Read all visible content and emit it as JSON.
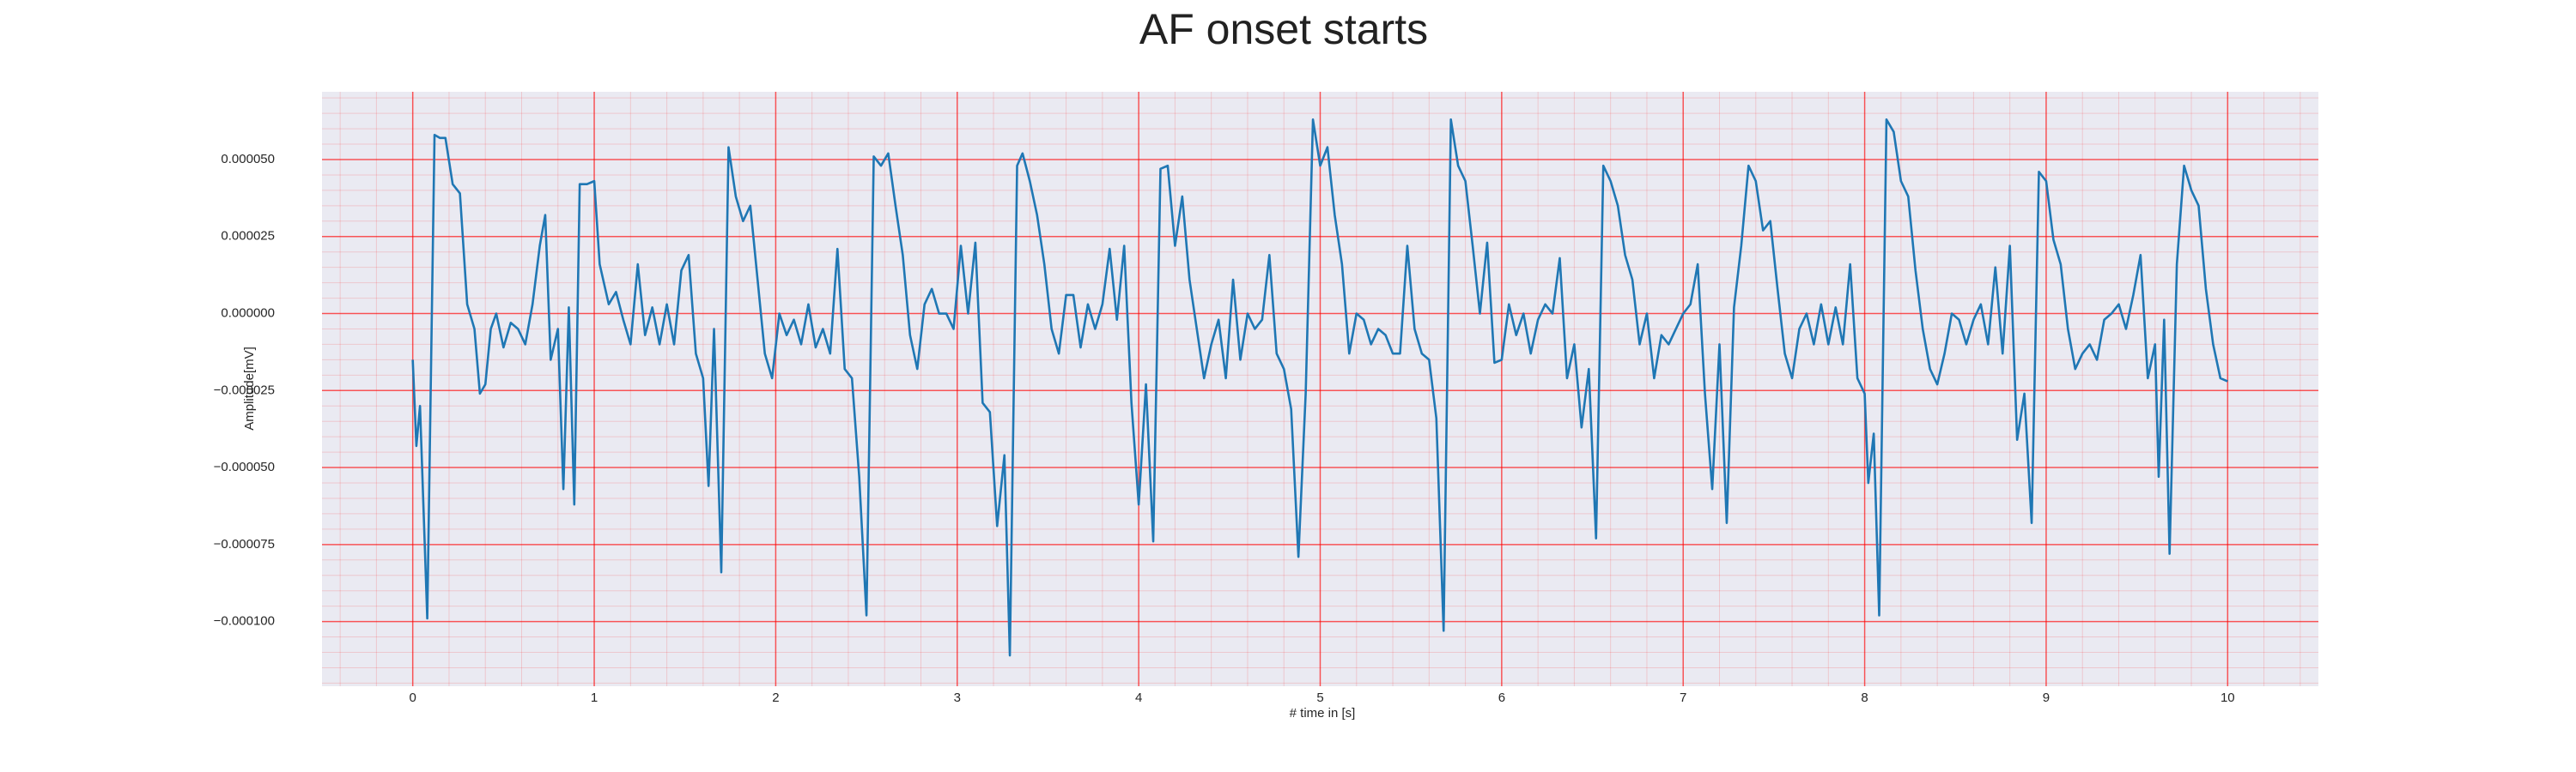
{
  "chart_data": {
    "type": "line",
    "title": "AF onset starts",
    "x_label": "# time in [s]",
    "y_label": "Amplitude[mV]",
    "color": "#1f77b4",
    "grid": true,
    "background": "#eaeaf2",
    "grid_color": "#ff0000",
    "xlim": [
      -0.5,
      10.5
    ],
    "xticks": [
      0,
      1,
      2,
      3,
      4,
      5,
      6,
      7,
      8,
      9,
      10
    ],
    "ylim": [
      -0.000121,
      7.2e-05
    ],
    "yticks": [
      {
        "value": -0.0001,
        "label": "−0.000100"
      },
      {
        "value": -7.5e-05,
        "label": "−0.000075"
      },
      {
        "value": -5e-05,
        "label": "−0.000050"
      },
      {
        "value": -2.5e-05,
        "label": "−0.000025"
      },
      {
        "value": 0,
        "label": "0.000000"
      },
      {
        "value": 2.5e-05,
        "label": "0.000025"
      },
      {
        "value": 5e-05,
        "label": "0.000050"
      }
    ],
    "x": [
      0,
      0.02,
      0.04,
      0.08,
      0.12,
      0.15,
      0.18,
      0.22,
      0.26,
      0.3,
      0.34,
      0.37,
      0.4,
      0.43,
      0.46,
      0.5,
      0.54,
      0.58,
      0.62,
      0.66,
      0.7,
      0.73,
      0.76,
      0.8,
      0.83,
      0.86,
      0.89,
      0.92,
      0.96,
      1.0,
      1.03,
      1.08,
      1.12,
      1.16,
      1.2,
      1.24,
      1.28,
      1.32,
      1.36,
      1.4,
      1.44,
      1.48,
      1.52,
      1.56,
      1.6,
      1.63,
      1.66,
      1.7,
      1.74,
      1.78,
      1.82,
      1.86,
      1.9,
      1.94,
      1.98,
      2.02,
      2.06,
      2.1,
      2.14,
      2.18,
      2.22,
      2.26,
      2.3,
      2.34,
      2.38,
      2.42,
      2.46,
      2.5,
      2.54,
      2.58,
      2.62,
      2.66,
      2.7,
      2.74,
      2.78,
      2.82,
      2.86,
      2.9,
      2.94,
      2.98,
      3.02,
      3.06,
      3.1,
      3.14,
      3.18,
      3.22,
      3.26,
      3.29,
      3.33,
      3.36,
      3.4,
      3.44,
      3.48,
      3.52,
      3.56,
      3.6,
      3.64,
      3.68,
      3.72,
      3.76,
      3.8,
      3.84,
      3.88,
      3.92,
      3.96,
      4.0,
      4.04,
      4.08,
      4.12,
      4.16,
      4.2,
      4.24,
      4.28,
      4.32,
      4.36,
      4.4,
      4.44,
      4.48,
      4.52,
      4.56,
      4.6,
      4.64,
      4.68,
      4.72,
      4.76,
      4.8,
      4.84,
      4.88,
      4.92,
      4.96,
      5.0,
      5.04,
      5.08,
      5.12,
      5.16,
      5.2,
      5.24,
      5.28,
      5.32,
      5.36,
      5.4,
      5.44,
      5.48,
      5.52,
      5.56,
      5.6,
      5.64,
      5.68,
      5.72,
      5.76,
      5.8,
      5.84,
      5.88,
      5.92,
      5.96,
      6.0,
      6.04,
      6.08,
      6.12,
      6.16,
      6.2,
      6.24,
      6.28,
      6.32,
      6.36,
      6.4,
      6.44,
      6.48,
      6.52,
      6.56,
      6.6,
      6.64,
      6.68,
      6.72,
      6.76,
      6.8,
      6.84,
      6.88,
      6.92,
      6.96,
      7.0,
      7.04,
      7.08,
      7.12,
      7.16,
      7.2,
      7.24,
      7.28,
      7.32,
      7.36,
      7.4,
      7.44,
      7.48,
      7.52,
      7.56,
      7.6,
      7.64,
      7.68,
      7.72,
      7.76,
      7.8,
      7.84,
      7.88,
      7.92,
      7.96,
      8.0,
      8.02,
      8.05,
      8.08,
      8.12,
      8.16,
      8.2,
      8.24,
      8.28,
      8.32,
      8.36,
      8.4,
      8.44,
      8.48,
      8.52,
      8.56,
      8.6,
      8.64,
      8.68,
      8.72,
      8.76,
      8.8,
      8.84,
      8.88,
      8.92,
      8.96,
      9.0,
      9.04,
      9.08,
      9.12,
      9.16,
      9.2,
      9.24,
      9.28,
      9.32,
      9.36,
      9.4,
      9.44,
      9.48,
      9.52,
      9.56,
      9.6,
      9.62,
      9.65,
      9.68,
      9.72,
      9.76,
      9.8,
      9.84,
      9.88,
      9.92,
      9.96,
      10.0
    ],
    "values": [
      -1.5e-05,
      -4.3e-05,
      -3e-05,
      -9.9e-05,
      5.8e-05,
      5.7e-05,
      5.7e-05,
      4.2e-05,
      3.9e-05,
      3e-06,
      -5e-06,
      -2.6e-05,
      -2.3e-05,
      -5e-06,
      0,
      -1.1e-05,
      -3e-06,
      -5e-06,
      -1e-05,
      3e-06,
      2.2e-05,
      3.2e-05,
      -1.5e-05,
      -5e-06,
      -5.7e-05,
      2e-06,
      -6.2e-05,
      4.2e-05,
      4.2e-05,
      4.3e-05,
      1.6e-05,
      3e-06,
      7e-06,
      -2e-06,
      -1e-05,
      1.6e-05,
      -7e-06,
      2e-06,
      -1e-05,
      3e-06,
      -1e-05,
      1.4e-05,
      1.9e-05,
      -1.3e-05,
      -2.1e-05,
      -5.6e-05,
      -5e-06,
      -8.4e-05,
      5.4e-05,
      3.8e-05,
      3e-05,
      3.5e-05,
      1.1e-05,
      -1.3e-05,
      -2.1e-05,
      0,
      -7e-06,
      -2e-06,
      -1e-05,
      3e-06,
      -1.1e-05,
      -5e-06,
      -1.3e-05,
      2.1e-05,
      -1.8e-05,
      -2.1e-05,
      -5.3e-05,
      -9.8e-05,
      5.1e-05,
      4.8e-05,
      5.2e-05,
      3.5e-05,
      1.9e-05,
      -7e-06,
      -1.8e-05,
      3e-06,
      8e-06,
      0,
      0,
      -5e-06,
      2.2e-05,
      0,
      2.3e-05,
      -2.9e-05,
      -3.2e-05,
      -6.9e-05,
      -4.6e-05,
      -0.000111,
      4.8e-05,
      5.2e-05,
      4.3e-05,
      3.2e-05,
      1.6e-05,
      -5e-06,
      -1.3e-05,
      6e-06,
      6e-06,
      -1.1e-05,
      3e-06,
      -5e-06,
      3e-06,
      2.1e-05,
      -2e-06,
      2.2e-05,
      -2.9e-05,
      -6.2e-05,
      -2.3e-05,
      -7.4e-05,
      4.7e-05,
      4.8e-05,
      2.2e-05,
      3.8e-05,
      1.1e-05,
      -5e-06,
      -2.1e-05,
      -1e-05,
      -2e-06,
      -2.1e-05,
      1.1e-05,
      -1.5e-05,
      0,
      -5e-06,
      -2e-06,
      1.9e-05,
      -1.3e-05,
      -1.8e-05,
      -3.1e-05,
      -7.9e-05,
      -2.6e-05,
      6.3e-05,
      4.8e-05,
      5.4e-05,
      3.2e-05,
      1.6e-05,
      -1.3e-05,
      0,
      -2e-06,
      -1e-05,
      -5e-06,
      -7e-06,
      -1.3e-05,
      -1.3e-05,
      2.2e-05,
      -5e-06,
      -1.3e-05,
      -1.5e-05,
      -3.4e-05,
      -0.000103,
      6.3e-05,
      4.8e-05,
      4.3e-05,
      2.2e-05,
      0,
      2.3e-05,
      -1.6e-05,
      -1.5e-05,
      3e-06,
      -7e-06,
      0,
      -1.3e-05,
      -2e-06,
      3e-06,
      0,
      1.8e-05,
      -2.1e-05,
      -1e-05,
      -3.7e-05,
      -1.8e-05,
      -7.3e-05,
      4.8e-05,
      4.3e-05,
      3.5e-05,
      1.9e-05,
      1.1e-05,
      -1e-05,
      0,
      -2.1e-05,
      -7e-06,
      -1e-05,
      -5e-06,
      0,
      3e-06,
      1.6e-05,
      -2.6e-05,
      -5.7e-05,
      -1e-05,
      -6.8e-05,
      2e-06,
      2.2e-05,
      4.8e-05,
      4.3e-05,
      2.7e-05,
      3e-05,
      8e-06,
      -1.3e-05,
      -2.1e-05,
      -5e-06,
      0,
      -1e-05,
      3e-06,
      -1e-05,
      2e-06,
      -1e-05,
      1.6e-05,
      -2.1e-05,
      -2.6e-05,
      -5.5e-05,
      -3.9e-05,
      -9.8e-05,
      6.3e-05,
      5.9e-05,
      4.3e-05,
      3.8e-05,
      1.4e-05,
      -5e-06,
      -1.8e-05,
      -2.3e-05,
      -1.3e-05,
      0,
      -2e-06,
      -1e-05,
      -2e-06,
      3e-06,
      -1e-05,
      1.5e-05,
      -1.3e-05,
      2.2e-05,
      -4.1e-05,
      -2.6e-05,
      -6.8e-05,
      4.6e-05,
      4.3e-05,
      2.4e-05,
      1.6e-05,
      -5e-06,
      -1.8e-05,
      -1.3e-05,
      -1e-05,
      -1.5e-05,
      -2e-06,
      0,
      3e-06,
      -5e-06,
      6e-06,
      1.9e-05,
      -2.1e-05,
      -1e-05,
      -5.3e-05,
      -2e-06,
      -7.8e-05,
      1.6e-05,
      4.8e-05,
      4e-05,
      3.5e-05,
      8e-06,
      -1e-05,
      -2.1e-05,
      -2.2e-05
    ]
  }
}
